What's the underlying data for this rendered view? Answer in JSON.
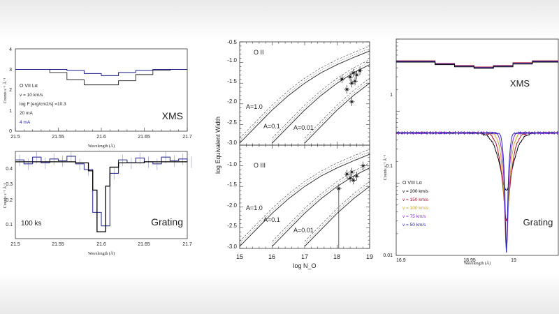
{
  "chart_data": [
    {
      "type": "line",
      "panel": "top-left",
      "xlabel": "Wavelength (Å)",
      "ylabel": "Counts s⁻¹ Å⁻¹",
      "xlim": [
        21.5,
        21.7
      ],
      "ylim": [
        0,
        4
      ],
      "xticks": [
        "21.5",
        "21.55",
        "21.6",
        "21.65",
        "21.7"
      ],
      "yticks": [
        "0",
        "1",
        "2",
        "3",
        "4"
      ],
      "label": "XMS",
      "annotations": [
        "O VII Lα",
        "v = 10 km/s",
        "log F [erg/cm2/s] =10.3",
        "20 mA",
        "4 mA"
      ],
      "series": [
        {
          "name": "20 mA",
          "color": "#222222",
          "x": [
            21.5,
            21.52,
            21.54,
            21.56,
            21.58,
            21.6,
            21.62,
            21.64,
            21.66,
            21.68,
            21.7
          ],
          "values": [
            3.0,
            3.0,
            2.85,
            2.5,
            2.25,
            2.25,
            2.45,
            2.75,
            2.95,
            3.0,
            3.0
          ]
        },
        {
          "name": "4 mA",
          "color": "#1d1d8c",
          "x": [
            21.5,
            21.52,
            21.54,
            21.56,
            21.58,
            21.6,
            21.62,
            21.64,
            21.66,
            21.68,
            21.7
          ],
          "values": [
            3.0,
            3.0,
            3.0,
            2.95,
            2.8,
            2.7,
            2.85,
            2.95,
            3.0,
            3.0,
            3.0
          ]
        }
      ]
    },
    {
      "type": "line",
      "panel": "bottom-left",
      "xlabel": "Wavelength (Å)",
      "ylabel": "Counts s⁻¹ Å⁻¹",
      "xlim": [
        21.5,
        21.7
      ],
      "ylim": [
        0.05,
        0.5
      ],
      "xticks": [
        "21.5",
        "21.55",
        "21.6",
        "21.65",
        "21.7"
      ],
      "yticks": [
        "0.1",
        "0.2",
        "0.3",
        "0.4"
      ],
      "label": "Grating",
      "annotation": "100 ks",
      "series": [
        {
          "name": "model",
          "color": "#000000",
          "x": [
            21.5,
            21.54,
            21.57,
            21.585,
            21.59,
            21.595,
            21.6,
            21.605,
            21.61,
            21.62,
            21.65,
            21.7
          ],
          "values": [
            0.38,
            0.38,
            0.37,
            0.3,
            0.18,
            0.06,
            0.06,
            0.2,
            0.33,
            0.37,
            0.38,
            0.38
          ]
        },
        {
          "name": "data",
          "color": "#333399",
          "x": [
            21.5,
            21.51,
            21.52,
            21.53,
            21.54,
            21.55,
            21.56,
            21.57,
            21.58,
            21.59,
            21.6,
            21.61,
            21.62,
            21.63,
            21.64,
            21.65,
            21.66,
            21.67,
            21.68,
            21.69,
            21.7
          ],
          "values": [
            0.4,
            0.36,
            0.43,
            0.37,
            0.41,
            0.39,
            0.44,
            0.36,
            0.31,
            0.1,
            0.07,
            0.28,
            0.4,
            0.37,
            0.42,
            0.38,
            0.36,
            0.43,
            0.39,
            0.41,
            0.38
          ]
        }
      ]
    },
    {
      "type": "line",
      "panel": "middle-top",
      "xlabel": "",
      "ylabel": "log Equivalent Width",
      "xlim": [
        15,
        19
      ],
      "ylim": [
        -3.0,
        -0.5
      ],
      "yticks": [
        "-3.0",
        "-2.5",
        "-2.0",
        "-1.5",
        "-1.0",
        "-0.5"
      ],
      "label": "O II",
      "curve_labels": [
        "A=1.0",
        "A=0.1",
        "A=0.01"
      ],
      "series": [
        {
          "name": "A=1.0",
          "x": [
            15.0,
            15.5,
            16.0,
            16.5,
            17.0,
            17.5,
            18.0,
            18.5,
            19.0
          ],
          "values": [
            -2.95,
            -2.55,
            -2.15,
            -1.8,
            -1.5,
            -1.25,
            -1.05,
            -0.88,
            -0.72
          ]
        },
        {
          "name": "A=0.1",
          "x": [
            16.0,
            16.5,
            17.0,
            17.5,
            18.0,
            18.5,
            19.0
          ],
          "values": [
            -2.95,
            -2.55,
            -2.15,
            -1.8,
            -1.5,
            -1.25,
            -1.05
          ]
        },
        {
          "name": "A=0.01",
          "x": [
            17.0,
            17.5,
            18.0,
            18.5,
            19.0
          ],
          "values": [
            -2.95,
            -2.55,
            -2.15,
            -1.8,
            -1.5
          ]
        }
      ],
      "points": [
        {
          "x": 18.15,
          "y": -1.4
        },
        {
          "x": 18.3,
          "y": -1.65
        },
        {
          "x": 18.4,
          "y": -1.35
        },
        {
          "x": 18.45,
          "y": -1.5
        },
        {
          "x": 18.5,
          "y": -1.25
        },
        {
          "x": 18.55,
          "y": -1.45
        },
        {
          "x": 18.6,
          "y": -1.3
        },
        {
          "x": 18.7,
          "y": -1.2
        },
        {
          "x": 18.45,
          "y": -1.95
        }
      ]
    },
    {
      "type": "line",
      "panel": "middle-bottom",
      "xlabel": "log N_O",
      "ylabel": "log Equivalent Width",
      "xlim": [
        15,
        19
      ],
      "ylim": [
        -3.0,
        -0.5
      ],
      "xticks": [
        "15",
        "16",
        "17",
        "18",
        "19"
      ],
      "yticks": [
        "-3.0",
        "-2.5",
        "-2.0",
        "-1.5",
        "-1.0"
      ],
      "label": "O III",
      "curve_labels": [
        "A=1.0",
        "A=0.1",
        "A=0.01"
      ],
      "series": [
        {
          "name": "A=1.0",
          "x": [
            15.0,
            15.5,
            16.0,
            16.5,
            17.0,
            17.5,
            18.0,
            18.5,
            19.0
          ],
          "values": [
            -2.95,
            -2.55,
            -2.15,
            -1.8,
            -1.5,
            -1.25,
            -1.05,
            -0.88,
            -0.72
          ]
        },
        {
          "name": "A=0.1",
          "x": [
            16.0,
            16.5,
            17.0,
            17.5,
            18.0,
            18.5,
            19.0
          ],
          "values": [
            -2.95,
            -2.55,
            -2.15,
            -1.8,
            -1.5,
            -1.25,
            -1.05
          ]
        },
        {
          "name": "A=0.01",
          "x": [
            17.0,
            17.5,
            18.0,
            18.5,
            19.0
          ],
          "values": [
            -2.95,
            -2.55,
            -2.15,
            -1.8,
            -1.5
          ]
        }
      ],
      "points": [
        {
          "x": 18.05,
          "y": -1.55
        },
        {
          "x": 18.3,
          "y": -1.2
        },
        {
          "x": 18.4,
          "y": -1.3
        },
        {
          "x": 18.45,
          "y": -1.15
        },
        {
          "x": 18.5,
          "y": -1.35
        },
        {
          "x": 18.6,
          "y": -1.25
        },
        {
          "x": 18.8,
          "y": -1.0
        }
      ]
    },
    {
      "type": "line",
      "panel": "right",
      "xlabel": "Wavelength (Å)",
      "ylabel": "Counts s⁻¹ Å⁻¹",
      "xlim": [
        18.8,
        19.05
      ],
      "ylim": [
        0.01,
        10
      ],
      "yscale": "log",
      "xticks": [
        "18.8",
        "18.85",
        "18.9",
        "18.95",
        "19"
      ],
      "xticks_shown": [
        "16.9",
        "18.95",
        "19"
      ],
      "yticks": [
        "0.01",
        "0.1",
        "1"
      ],
      "label_top": "XMS",
      "label_bottom": "Grating",
      "legend_title": "O VIII Lα",
      "series": [
        {
          "name": "v = 200 km/s",
          "color": "#000000"
        },
        {
          "name": "v = 150 km/s",
          "color": "#b0132b"
        },
        {
          "name": "v = 100 km/s",
          "color": "#c9a227"
        },
        {
          "name": "v = 75 km/s",
          "color": "#8a2be2"
        },
        {
          "name": "v = 50 km/s",
          "color": "#2a2ab8"
        }
      ],
      "xms_steps": {
        "x": [
          18.8,
          18.83,
          18.86,
          18.89,
          18.92,
          18.95,
          18.98,
          19.01,
          19.05
        ],
        "values": [
          5.0,
          5.0,
          4.6,
          4.3,
          4.1,
          4.3,
          4.7,
          5.0,
          5.0
        ]
      },
      "grating_continuum": 0.5,
      "line_center": 18.97
    }
  ]
}
